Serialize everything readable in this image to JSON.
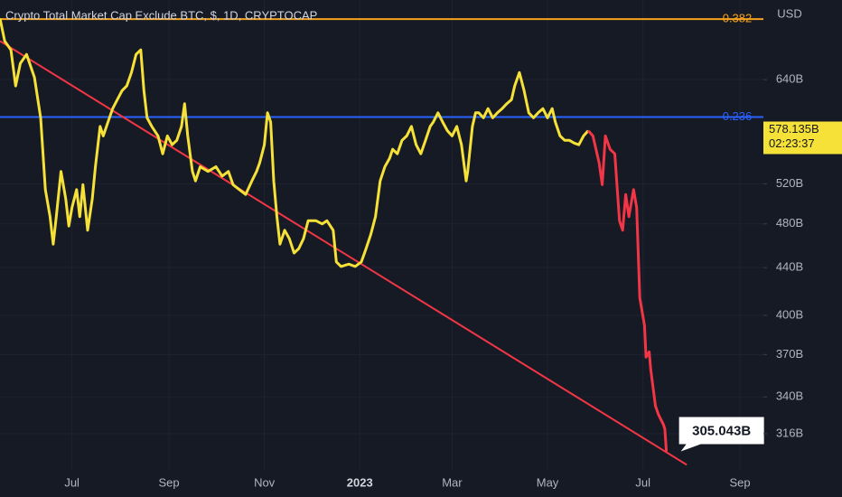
{
  "chart_data": {
    "type": "line",
    "title": "Crypto Total Market Cap Exclude BTC, $, 1D, CRYPTOCAP",
    "currency": "USD",
    "log_scale": true,
    "grid": true,
    "xlim": [
      -230,
      258
    ],
    "ylim": [
      294,
      750
    ],
    "xticks": [
      {
        "value": -184,
        "label": "Jul"
      },
      {
        "value": -122,
        "label": "Sep"
      },
      {
        "value": -61,
        "label": "Nov"
      },
      {
        "value": 0,
        "label": "2023"
      },
      {
        "value": 59,
        "label": "Mar"
      },
      {
        "value": 120,
        "label": "May"
      },
      {
        "value": 181,
        "label": "Jul"
      },
      {
        "value": 243,
        "label": "Sep"
      }
    ],
    "yticks": [
      {
        "value": 640,
        "label": "640B"
      },
      {
        "value": 520,
        "label": "520B"
      },
      {
        "value": 480,
        "label": "480B"
      },
      {
        "value": 440,
        "label": "440B"
      },
      {
        "value": 400,
        "label": "400B"
      },
      {
        "value": 370,
        "label": "370B"
      },
      {
        "value": 340,
        "label": "340B"
      },
      {
        "value": 316,
        "label": "316B"
      }
    ],
    "series": [
      {
        "color": "#f5e137",
        "x": [
          -230,
          -227,
          -223,
          -220,
          -217,
          -213,
          -208,
          -204,
          -201,
          -198,
          -196,
          -194,
          -191,
          -188,
          -186,
          -184,
          -181,
          -179,
          -177,
          -174,
          -171,
          -169,
          -166,
          -164,
          -161,
          -158,
          -155,
          -152,
          -149,
          -146,
          -143,
          -140,
          -138,
          -136,
          -133,
          -129,
          -126,
          -123,
          -120,
          -117,
          -114,
          -112,
          -110,
          -107,
          -105,
          -102,
          -97,
          -92,
          -88,
          -84,
          -81,
          -77,
          -73,
          -69,
          -66,
          -64,
          -61,
          -59,
          -57,
          -55,
          -53,
          -51,
          -48,
          -45,
          -42,
          -39,
          -36,
          -33,
          -31,
          -28,
          -24,
          -21,
          -17,
          -15,
          -12,
          -7,
          -3,
          1,
          4,
          7,
          10,
          13,
          16,
          19,
          21,
          24,
          27,
          30,
          33,
          36,
          39,
          42,
          45,
          47,
          50,
          53,
          56,
          59,
          62,
          65,
          68,
          69,
          72,
          74,
          76,
          79,
          82,
          85,
          88,
          91,
          94,
          97,
          99,
          102,
          105,
          108,
          111,
          114,
          117,
          120,
          123,
          125,
          128,
          131,
          134,
          137,
          140,
          143,
          146
        ],
        "values": [
          723,
          691,
          679,
          632,
          661,
          673,
          643,
          593,
          514,
          487,
          461,
          487,
          533,
          505,
          478,
          496,
          514,
          487,
          519,
          474,
          505,
          538,
          583,
          572,
          588,
          604,
          615,
          626,
          632,
          649,
          673,
          679,
          626,
          593,
          583,
          572,
          552,
          572,
          562,
          567,
          583,
          610,
          572,
          533,
          523,
          538,
          533,
          538,
          528,
          533,
          519,
          514,
          509,
          523,
          533,
          542,
          562,
          599,
          588,
          523,
          487,
          461,
          474,
          466,
          453,
          457,
          466,
          483,
          483,
          483,
          480,
          483,
          474,
          445,
          441,
          443,
          441,
          445,
          457,
          470,
          487,
          523,
          538,
          547,
          557,
          552,
          567,
          572,
          583,
          562,
          552,
          567,
          583,
          588,
          599,
          588,
          578,
          572,
          583,
          562,
          523,
          533,
          583,
          599,
          599,
          593,
          604,
          593,
          599,
          604,
          610,
          615,
          632,
          649,
          626,
          599,
          593,
          599,
          604,
          593,
          604,
          588,
          572,
          567,
          567,
          564,
          562,
          572,
          578
        ]
      },
      {
        "color": "#f23645",
        "x": [
          146,
          149,
          151,
          153,
          155,
          157,
          160,
          163,
          166,
          168,
          170,
          172,
          175,
          177,
          179,
          182,
          183,
          185,
          186,
          189,
          191,
          194,
          195,
          196
        ],
        "values": [
          578,
          572,
          557,
          542,
          519,
          572,
          557,
          552,
          483,
          474,
          509,
          487,
          514,
          496,
          414,
          392,
          368,
          372,
          359,
          334,
          328,
          322,
          319,
          305.043
        ],
        "value_labels": [
          null,
          null,
          null,
          null,
          null,
          null,
          null,
          null,
          null,
          null,
          null,
          null,
          null,
          null,
          null,
          null,
          null,
          null,
          null,
          null,
          null,
          null,
          null,
          "305.043B"
        ]
      }
    ],
    "trendline": {
      "color": "#f23645",
      "x": [
        -230,
        209
      ],
      "values": [
        691,
        297
      ]
    },
    "fib_levels": [
      {
        "ratio": 0.382,
        "value": 722,
        "color": "#f7a21b"
      },
      {
        "ratio": 0.236,
        "value": 594,
        "color": "#2962ff"
      }
    ],
    "last_price": {
      "value": 578.135,
      "label": "578.135B",
      "countdown": "02:23:37",
      "color": "#f5e137"
    }
  }
}
